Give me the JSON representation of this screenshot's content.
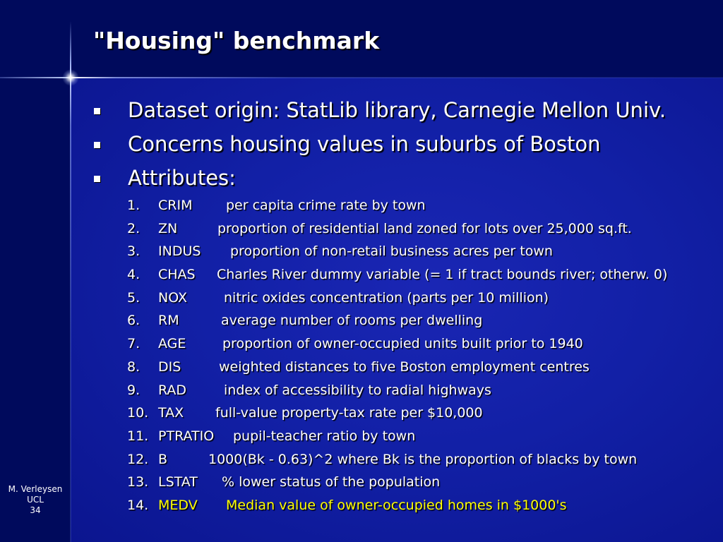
{
  "slide": {
    "title": "\"Housing\" benchmark",
    "bullets": [
      "Dataset origin: StatLib library, Carnegie Mellon Univ.",
      "Concerns housing values in suburbs of Boston",
      "Attributes:"
    ],
    "attributes": [
      {
        "num": "1.",
        "name": "CRIM",
        "desc": "per capita crime rate by town"
      },
      {
        "num": "2.",
        "name": "ZN",
        "desc": "proportion of residential land zoned for lots over 25,000 sq.ft."
      },
      {
        "num": "3.",
        "name": "INDUS",
        "desc": "proportion of non-retail business acres per town"
      },
      {
        "num": "4.",
        "name": "CHAS",
        "desc": "Charles River dummy variable (= 1 if tract bounds river; otherw. 0)"
      },
      {
        "num": "5.",
        "name": "NOX",
        "desc": "nitric oxides concentration (parts per 10 million)"
      },
      {
        "num": "6.",
        "name": "RM",
        "desc": "average number of rooms per dwelling"
      },
      {
        "num": "7.",
        "name": "AGE",
        "desc": "proportion of owner-occupied units built prior to 1940"
      },
      {
        "num": "8.",
        "name": "DIS",
        "desc": "weighted distances to five Boston employment centres"
      },
      {
        "num": "9.",
        "name": "RAD",
        "desc": "index of accessibility to radial highways"
      },
      {
        "num": "10.",
        "name": "TAX",
        "desc": "full-value property-tax rate per $10,000"
      },
      {
        "num": "11.",
        "name": "PTRATIO",
        "desc": "pupil-teacher ratio by town"
      },
      {
        "num": "12.",
        "name": "B",
        "desc": "1000(Bk - 0.63)^2 where Bk is the proportion of blacks by town"
      },
      {
        "num": "13.",
        "name": "LSTAT",
        "desc": "% lower status of the population"
      },
      {
        "num": "14.",
        "name": "MEDV",
        "desc": "Median value of owner-occupied homes in $1000's"
      }
    ],
    "highlight_color": "#ffff00",
    "footer": {
      "author": "M. Verleysen",
      "institution": "UCL",
      "page": "34"
    }
  }
}
